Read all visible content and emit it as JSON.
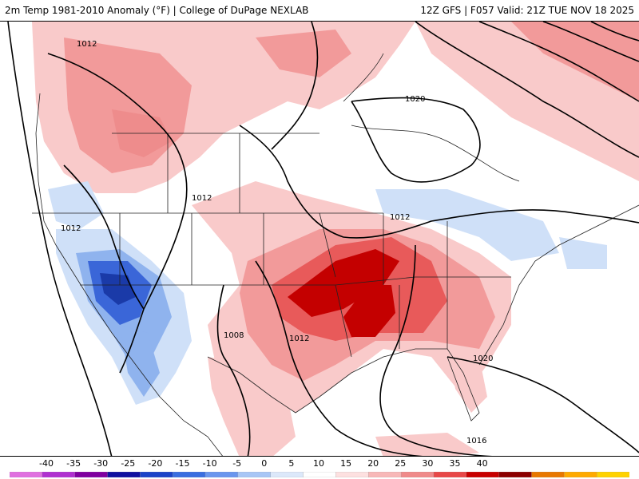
{
  "header": {
    "left_title": "2m Temp 1981-2010 Anomaly (°F) | College of DuPage NEXLAB",
    "right_title": "12Z GFS | F057 Valid: 21Z TUE NOV 18 2025"
  },
  "isobar_labels": [
    "1012",
    "1020",
    "1012",
    "1012",
    "1012",
    "1008",
    "1012",
    "1020",
    "1016"
  ],
  "colorbar": {
    "labels": [
      "-40",
      "-35",
      "-30",
      "-25",
      "-20",
      "-15",
      "-10",
      "-5",
      "0",
      "5",
      "10",
      "15",
      "20",
      "25",
      "30",
      "35",
      "40"
    ],
    "colors": [
      "#e070e0",
      "#b030d0",
      "#8000a0",
      "#1010a0",
      "#1c44c8",
      "#3a6ee0",
      "#6a96ee",
      "#a8c6f6",
      "#dce8fa",
      "#ffffff",
      "#fde0e0",
      "#f8b8b8",
      "#f08a8a",
      "#e84848",
      "#c80000",
      "#8c0000",
      "#e87800",
      "#ffaa00",
      "#ffd200"
    ]
  },
  "colors": {
    "warm_light": "#f9caca",
    "warm_mid": "#f29a9a",
    "warm_strong": "#e85a5a",
    "warm_max": "#c40000",
    "cool_light": "#cfe0f8",
    "cool_mid": "#8fb3ee",
    "cool_strong": "#3a66d8",
    "cool_max": "#1a3aa8"
  }
}
